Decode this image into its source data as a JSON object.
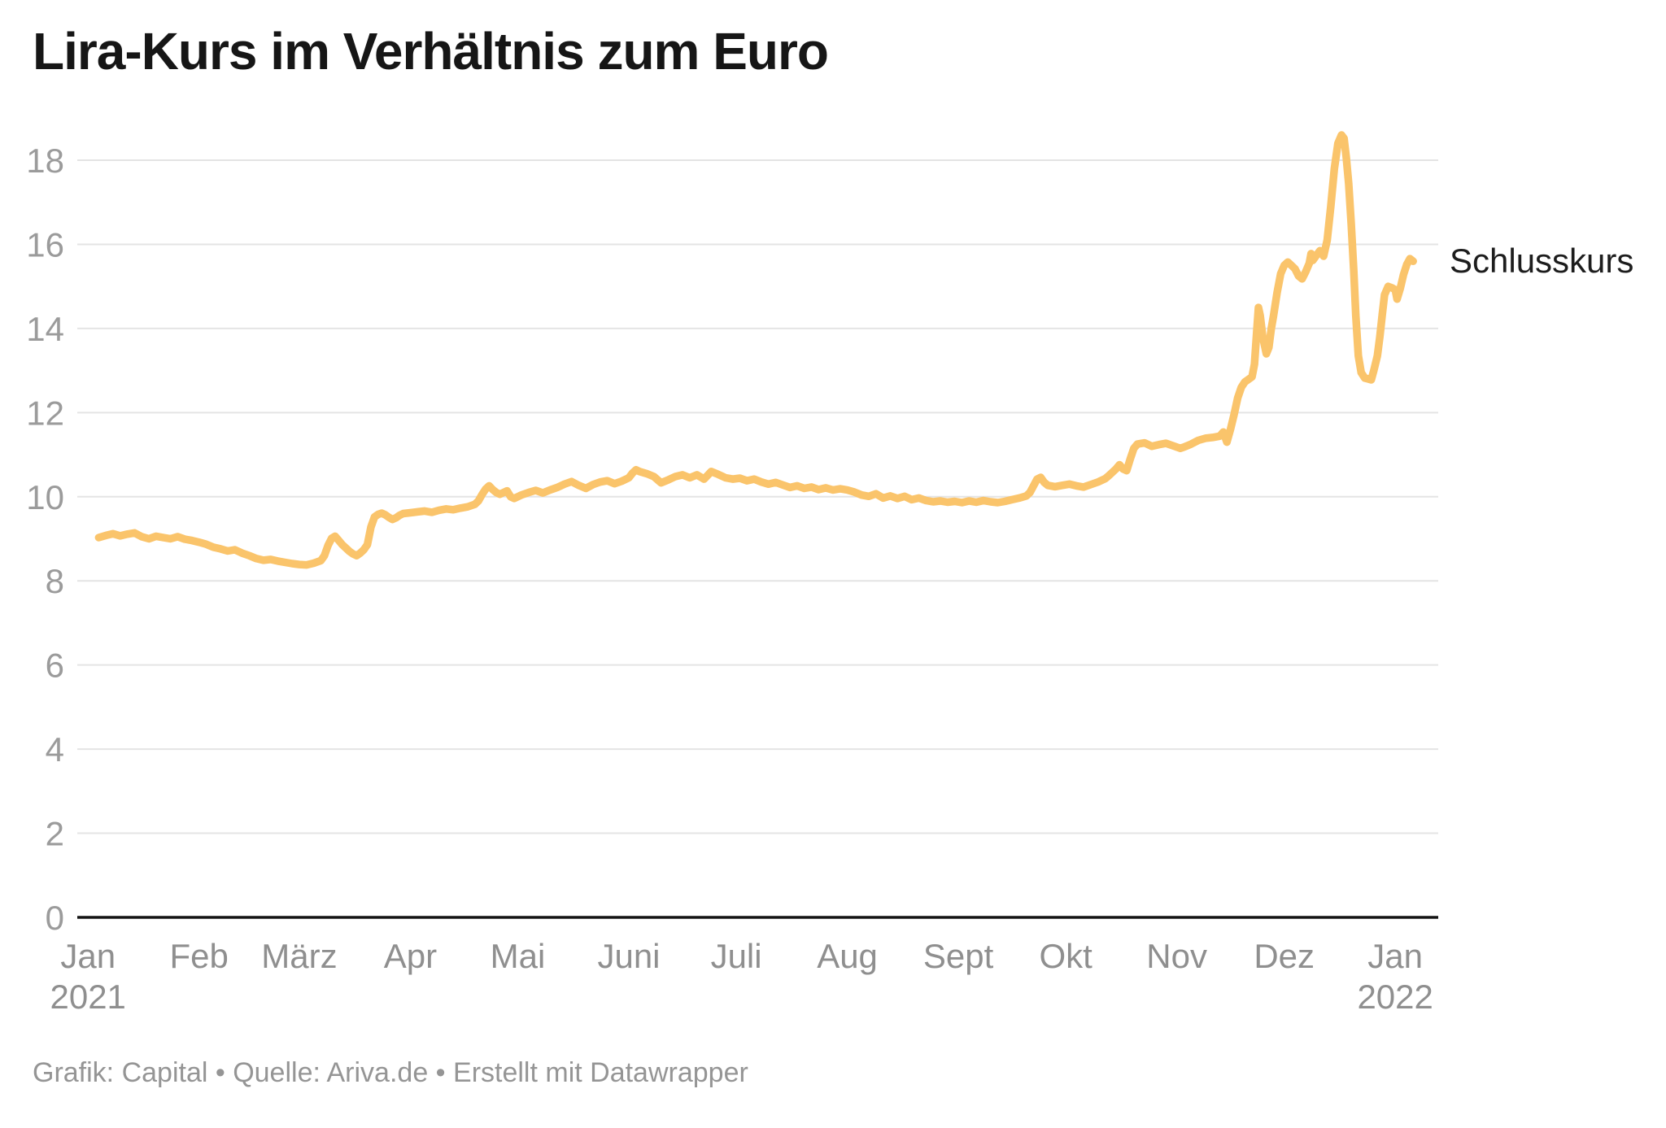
{
  "title": "Lira-Kurs im Verhältnis zum Euro",
  "annotation_label": "Schlusskurs",
  "footer": "Grafik: Capital • Quelle: Ariva.de • Erstellt mit Datawrapper",
  "colors": {
    "line": "#FAC46B",
    "grid": "#E4E4E4",
    "axis": "#141414",
    "y_tick_label": "#9B9B9B",
    "x_tick_label": "#8F8F8F",
    "title": "#161616",
    "annotation": "#1D1D1D",
    "footer": "#959595",
    "background": "#FFFFFF"
  },
  "chart_data": {
    "type": "line",
    "title": "Lira-Kurs im Verhältnis zum Euro",
    "series_name": "Schlusskurs",
    "x_unit": "days_since_2021-01-01",
    "xlim": [
      -3,
      377
    ],
    "ylim": [
      0,
      18.7
    ],
    "grid": "horizontal",
    "legend_position": "end-of-line-label",
    "y_ticks": [
      0,
      2,
      4,
      6,
      8,
      10,
      12,
      14,
      16,
      18
    ],
    "x_ticks": [
      {
        "label": "Jan",
        "sublabel": "2021",
        "day": 0
      },
      {
        "label": "Feb",
        "sublabel": "",
        "day": 31
      },
      {
        "label": "März",
        "sublabel": "",
        "day": 59
      },
      {
        "label": "Apr",
        "sublabel": "",
        "day": 90
      },
      {
        "label": "Mai",
        "sublabel": "",
        "day": 120
      },
      {
        "label": "Juni",
        "sublabel": "",
        "day": 151
      },
      {
        "label": "Juli",
        "sublabel": "",
        "day": 181
      },
      {
        "label": "Aug",
        "sublabel": "",
        "day": 212
      },
      {
        "label": "Sept",
        "sublabel": "",
        "day": 243
      },
      {
        "label": "Okt",
        "sublabel": "",
        "day": 273
      },
      {
        "label": "Nov",
        "sublabel": "",
        "day": 304
      },
      {
        "label": "Dez",
        "sublabel": "",
        "day": 334
      },
      {
        "label": "Jan",
        "sublabel": "2022",
        "day": 365
      }
    ],
    "points": [
      [
        3,
        9.03
      ],
      [
        5,
        9.08
      ],
      [
        7,
        9.12
      ],
      [
        9,
        9.07
      ],
      [
        11,
        9.11
      ],
      [
        13,
        9.14
      ],
      [
        15,
        9.05
      ],
      [
        17,
        9.0
      ],
      [
        19,
        9.06
      ],
      [
        21,
        9.03
      ],
      [
        23,
        9.0
      ],
      [
        25,
        9.05
      ],
      [
        27,
        8.99
      ],
      [
        29,
        8.96
      ],
      [
        31,
        8.92
      ],
      [
        33,
        8.87
      ],
      [
        35,
        8.8
      ],
      [
        37,
        8.76
      ],
      [
        39,
        8.71
      ],
      [
        41,
        8.74
      ],
      [
        43,
        8.66
      ],
      [
        45,
        8.6
      ],
      [
        47,
        8.53
      ],
      [
        49,
        8.49
      ],
      [
        51,
        8.51
      ],
      [
        53,
        8.47
      ],
      [
        55,
        8.44
      ],
      [
        57,
        8.41
      ],
      [
        59,
        8.39
      ],
      [
        61,
        8.38
      ],
      [
        63,
        8.42
      ],
      [
        65,
        8.48
      ],
      [
        66,
        8.6
      ],
      [
        67,
        8.84
      ],
      [
        68,
        9.01
      ],
      [
        69,
        9.06
      ],
      [
        70,
        8.96
      ],
      [
        71,
        8.86
      ],
      [
        72,
        8.78
      ],
      [
        73,
        8.7
      ],
      [
        74,
        8.64
      ],
      [
        75,
        8.6
      ],
      [
        76,
        8.66
      ],
      [
        77,
        8.74
      ],
      [
        78,
        8.86
      ],
      [
        79,
        9.28
      ],
      [
        80,
        9.52
      ],
      [
        81,
        9.58
      ],
      [
        82,
        9.61
      ],
      [
        83,
        9.57
      ],
      [
        84,
        9.51
      ],
      [
        85,
        9.46
      ],
      [
        86,
        9.5
      ],
      [
        87,
        9.56
      ],
      [
        88,
        9.6
      ],
      [
        90,
        9.62
      ],
      [
        92,
        9.64
      ],
      [
        94,
        9.66
      ],
      [
        96,
        9.63
      ],
      [
        98,
        9.68
      ],
      [
        100,
        9.71
      ],
      [
        102,
        9.69
      ],
      [
        104,
        9.73
      ],
      [
        106,
        9.76
      ],
      [
        108,
        9.82
      ],
      [
        109,
        9.9
      ],
      [
        110,
        10.05
      ],
      [
        111,
        10.18
      ],
      [
        112,
        10.26
      ],
      [
        113,
        10.17
      ],
      [
        114,
        10.1
      ],
      [
        115,
        10.06
      ],
      [
        116,
        10.1
      ],
      [
        117,
        10.14
      ],
      [
        118,
        10.0
      ],
      [
        119,
        9.96
      ],
      [
        121,
        10.04
      ],
      [
        123,
        10.1
      ],
      [
        125,
        10.15
      ],
      [
        127,
        10.09
      ],
      [
        129,
        10.16
      ],
      [
        131,
        10.22
      ],
      [
        133,
        10.3
      ],
      [
        135,
        10.36
      ],
      [
        137,
        10.27
      ],
      [
        139,
        10.2
      ],
      [
        141,
        10.29
      ],
      [
        143,
        10.35
      ],
      [
        145,
        10.38
      ],
      [
        147,
        10.31
      ],
      [
        149,
        10.37
      ],
      [
        151,
        10.45
      ],
      [
        152,
        10.56
      ],
      [
        153,
        10.64
      ],
      [
        154,
        10.6
      ],
      [
        156,
        10.55
      ],
      [
        158,
        10.48
      ],
      [
        160,
        10.33
      ],
      [
        162,
        10.4
      ],
      [
        164,
        10.48
      ],
      [
        166,
        10.52
      ],
      [
        168,
        10.45
      ],
      [
        170,
        10.52
      ],
      [
        172,
        10.42
      ],
      [
        174,
        10.6
      ],
      [
        176,
        10.53
      ],
      [
        178,
        10.45
      ],
      [
        180,
        10.42
      ],
      [
        182,
        10.44
      ],
      [
        184,
        10.38
      ],
      [
        186,
        10.42
      ],
      [
        188,
        10.35
      ],
      [
        190,
        10.3
      ],
      [
        192,
        10.34
      ],
      [
        194,
        10.28
      ],
      [
        196,
        10.22
      ],
      [
        198,
        10.26
      ],
      [
        200,
        10.2
      ],
      [
        202,
        10.23
      ],
      [
        204,
        10.17
      ],
      [
        206,
        10.21
      ],
      [
        208,
        10.16
      ],
      [
        210,
        10.19
      ],
      [
        212,
        10.16
      ],
      [
        214,
        10.11
      ],
      [
        216,
        10.04
      ],
      [
        218,
        10.01
      ],
      [
        220,
        10.07
      ],
      [
        222,
        9.97
      ],
      [
        224,
        10.02
      ],
      [
        226,
        9.96
      ],
      [
        228,
        10.01
      ],
      [
        230,
        9.93
      ],
      [
        232,
        9.97
      ],
      [
        234,
        9.91
      ],
      [
        236,
        9.88
      ],
      [
        238,
        9.9
      ],
      [
        240,
        9.87
      ],
      [
        242,
        9.89
      ],
      [
        244,
        9.86
      ],
      [
        246,
        9.9
      ],
      [
        248,
        9.87
      ],
      [
        250,
        9.91
      ],
      [
        252,
        9.88
      ],
      [
        254,
        9.86
      ],
      [
        256,
        9.89
      ],
      [
        258,
        9.93
      ],
      [
        260,
        9.97
      ],
      [
        262,
        10.02
      ],
      [
        263,
        10.1
      ],
      [
        264,
        10.26
      ],
      [
        265,
        10.42
      ],
      [
        266,
        10.46
      ],
      [
        267,
        10.34
      ],
      [
        268,
        10.27
      ],
      [
        270,
        10.24
      ],
      [
        272,
        10.27
      ],
      [
        274,
        10.3
      ],
      [
        276,
        10.26
      ],
      [
        278,
        10.23
      ],
      [
        280,
        10.29
      ],
      [
        282,
        10.35
      ],
      [
        284,
        10.43
      ],
      [
        285,
        10.5
      ],
      [
        286,
        10.58
      ],
      [
        287,
        10.66
      ],
      [
        288,
        10.76
      ],
      [
        289,
        10.66
      ],
      [
        290,
        10.62
      ],
      [
        291,
        10.9
      ],
      [
        292,
        11.15
      ],
      [
        293,
        11.25
      ],
      [
        295,
        11.28
      ],
      [
        297,
        11.2
      ],
      [
        299,
        11.24
      ],
      [
        301,
        11.27
      ],
      [
        303,
        11.21
      ],
      [
        305,
        11.15
      ],
      [
        306,
        11.18
      ],
      [
        308,
        11.25
      ],
      [
        310,
        11.34
      ],
      [
        312,
        11.39
      ],
      [
        314,
        11.41
      ],
      [
        316,
        11.44
      ],
      [
        317,
        11.54
      ],
      [
        318,
        11.3
      ],
      [
        319,
        11.6
      ],
      [
        320,
        11.95
      ],
      [
        321,
        12.35
      ],
      [
        322,
        12.6
      ],
      [
        323,
        12.73
      ],
      [
        324,
        12.79
      ],
      [
        325,
        12.85
      ],
      [
        325.7,
        13.15
      ],
      [
        326.3,
        13.9
      ],
      [
        326.8,
        14.5
      ],
      [
        327.3,
        14.3
      ],
      [
        328,
        13.8
      ],
      [
        329,
        13.4
      ],
      [
        329.7,
        13.55
      ],
      [
        330.4,
        14.0
      ],
      [
        331,
        14.3
      ],
      [
        332,
        14.85
      ],
      [
        333,
        15.3
      ],
      [
        334,
        15.5
      ],
      [
        335,
        15.58
      ],
      [
        336,
        15.5
      ],
      [
        337,
        15.42
      ],
      [
        338,
        15.25
      ],
      [
        339,
        15.18
      ],
      [
        340,
        15.35
      ],
      [
        341,
        15.55
      ],
      [
        341.5,
        15.78
      ],
      [
        342,
        15.62
      ],
      [
        343,
        15.74
      ],
      [
        344,
        15.85
      ],
      [
        345,
        15.72
      ],
      [
        346,
        16.1
      ],
      [
        347,
        16.9
      ],
      [
        348,
        17.8
      ],
      [
        349,
        18.4
      ],
      [
        350,
        18.6
      ],
      [
        350.7,
        18.52
      ],
      [
        351.3,
        18.08
      ],
      [
        352,
        17.45
      ],
      [
        352.7,
        16.5
      ],
      [
        353.4,
        15.4
      ],
      [
        354,
        14.3
      ],
      [
        354.7,
        13.35
      ],
      [
        355.5,
        12.95
      ],
      [
        356.5,
        12.82
      ],
      [
        357.5,
        12.8
      ],
      [
        358.3,
        12.78
      ],
      [
        359,
        13.0
      ],
      [
        360,
        13.35
      ],
      [
        360.7,
        13.8
      ],
      [
        361.4,
        14.35
      ],
      [
        362,
        14.8
      ],
      [
        363,
        15.0
      ],
      [
        364,
        14.97
      ],
      [
        365,
        14.92
      ],
      [
        365.5,
        14.7
      ],
      [
        366.4,
        14.95
      ],
      [
        367.3,
        15.28
      ],
      [
        368.2,
        15.52
      ],
      [
        369.1,
        15.66
      ],
      [
        370,
        15.6
      ]
    ]
  }
}
